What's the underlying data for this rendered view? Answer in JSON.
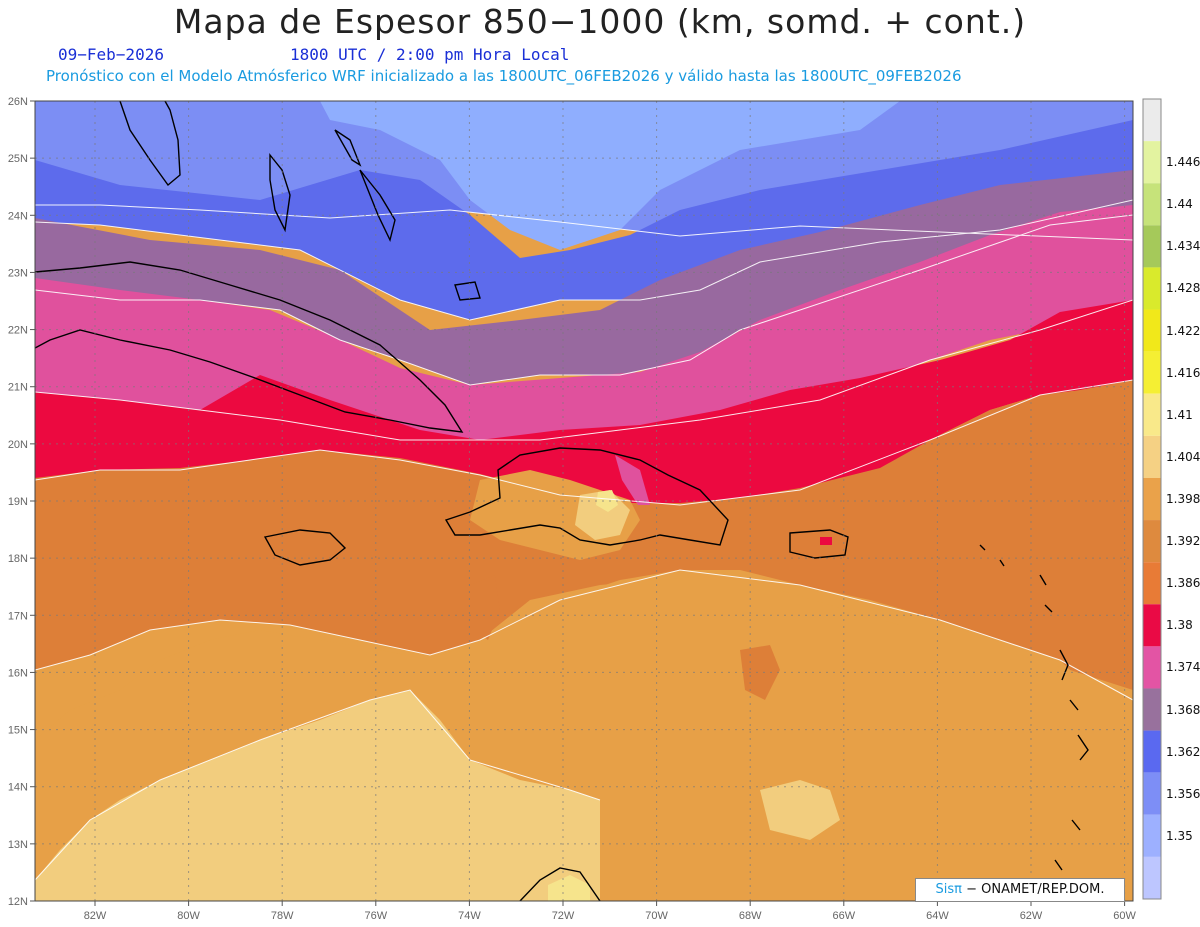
{
  "header": {
    "title": "Mapa de Espesor 850−1000 (km, somd. + cont.)",
    "date": "09−Feb−2026",
    "time": "1800 UTC / 2:00 pm Hora Local",
    "model_info": "Pronóstico con el Modelo Atmósferico WRF inicializado a las 1800UTC_06FEB2026 y válido hasta las  1800UTC_09FEB2026"
  },
  "axes": {
    "lat_labels": [
      "26N",
      "25N",
      "24N",
      "23N",
      "22N",
      "21N",
      "20N",
      "19N",
      "18N",
      "17N",
      "16N",
      "15N",
      "14N",
      "13N",
      "12N"
    ],
    "lon_labels": [
      "82W",
      "80W",
      "78W",
      "76W",
      "74W",
      "72W",
      "70W",
      "68W",
      "66W",
      "64W",
      "62W",
      "60W"
    ]
  },
  "colorbar": {
    "labels": [
      "1.446",
      "1.44",
      "1.434",
      "1.428",
      "1.422",
      "1.416",
      "1.41",
      "1.404",
      "1.398",
      "1.392",
      "1.386",
      "1.38",
      "1.374",
      "1.368",
      "1.362",
      "1.356",
      "1.35"
    ],
    "colors_top_to_bottom": [
      "#ebebeb",
      "#e3f3a0",
      "#c6e37a",
      "#a5c95a",
      "#d9ea2c",
      "#f1e81a",
      "#f5ef33",
      "#f9e98a",
      "#f5d184",
      "#eaa24a",
      "#de8a3e",
      "#e87b36",
      "#ea0a45",
      "#e354a4",
      "#98719d",
      "#5a69f0",
      "#7d8ef6",
      "#9db0ff",
      "#bdc6ff"
    ],
    "map_colors": {
      "light_blue": "#8faefe",
      "mid_blue": "#7c8ef4",
      "blue": "#5d6bec",
      "purple": "#98699f",
      "pink": "#e0519d",
      "red": "#ec0940",
      "dark_orange": "#dd7f38",
      "orange": "#e7a047",
      "light_orange": "#f2cd7e",
      "pale_yellow": "#f6e48c"
    }
  },
  "credit": {
    "brand": "Sisπ",
    "text": " − ONAMET/REP.DOM."
  }
}
